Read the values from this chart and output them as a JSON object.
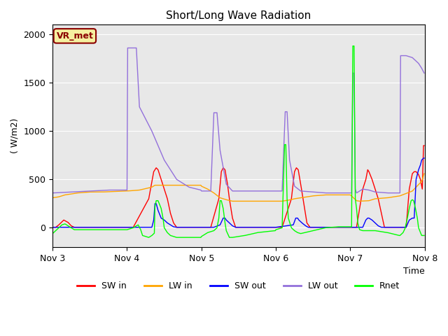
{
  "title": "Short/Long Wave Radiation",
  "ylabel": "( W/m2)",
  "xlabel": "Time",
  "ylim": [
    -200,
    2100
  ],
  "background_color": "#e8e8e8",
  "annotation": "VR_met",
  "legend": [
    "SW in",
    "LW in",
    "SW out",
    "LW out",
    "Rnet"
  ],
  "colors": [
    "red",
    "orange",
    "blue",
    "mediumpurple",
    "lime"
  ],
  "x_ticks": [
    "Nov 3",
    "Nov 4",
    "Nov 5",
    "Nov 6",
    "Nov 7",
    "Nov 8"
  ],
  "total_points": 600,
  "x_tick_positions": [
    0,
    120,
    240,
    360,
    480,
    600
  ]
}
